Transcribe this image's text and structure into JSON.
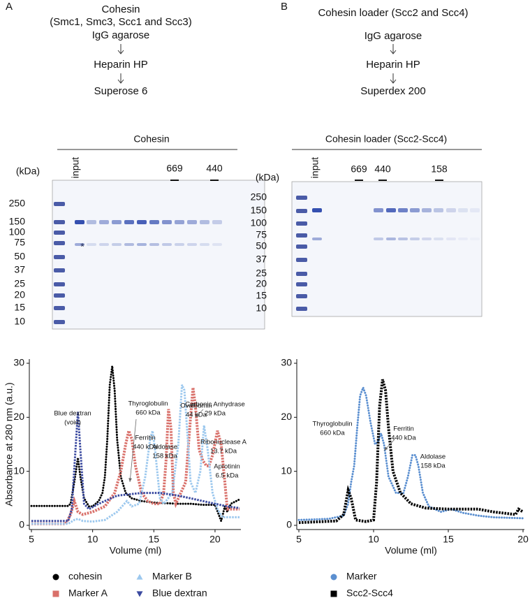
{
  "panels": [
    {
      "label": "A",
      "title": "Cohesin",
      "subtitle": "(Smc1, Smc3, Scc1 and Scc3)",
      "steps": [
        "IgG agarose",
        "Heparin HP",
        "Superose 6"
      ],
      "gel": {
        "title": "Cohesin",
        "unit": "(kDa)",
        "lane_label": "input",
        "ladder": [
          250,
          150,
          100,
          75,
          50,
          37,
          25,
          20,
          15,
          10
        ],
        "markers": [
          669,
          440
        ],
        "asterisk": "*"
      }
    },
    {
      "label": "B",
      "title": "Cohesin loader (Scc2 and Scc4)",
      "steps": [
        "IgG agarose",
        "Heparin HP",
        "Superdex 200"
      ],
      "gel": {
        "title": "Cohesin loader (Scc2-Scc4)",
        "unit": "(kDa)",
        "lane_label": "input",
        "ladder": [
          250,
          150,
          100,
          75,
          50,
          37,
          25,
          20,
          15,
          10
        ],
        "markers": [
          669,
          440,
          158
        ]
      }
    }
  ],
  "chart_data": [
    {
      "type": "scatter",
      "xlabel": "Volume (ml)",
      "ylabel": "Absorbance at 280 nm (a.u.)",
      "xlim": [
        5,
        22
      ],
      "xticks": [
        5,
        10,
        15,
        20
      ],
      "ylim": [
        0,
        30
      ],
      "yticks": [
        0,
        10,
        20,
        30
      ],
      "series": [
        {
          "name": "cohesin",
          "color": "#000000",
          "marker": "circle",
          "x": [
            5,
            6,
            7,
            8,
            8.2,
            8.5,
            8.8,
            9.0,
            9.3,
            9.7,
            10,
            10.5,
            10.8,
            11,
            11.2,
            11.4,
            11.6,
            11.8,
            12,
            12.3,
            12.7,
            13.2,
            14,
            15,
            16,
            17,
            18,
            19,
            20,
            20.3,
            20.5,
            20.8,
            21,
            21.3,
            22
          ],
          "values": [
            3.6,
            3.6,
            3.6,
            3.6,
            4,
            8,
            12.5,
            9,
            5,
            3.5,
            3.5,
            4.5,
            6,
            9,
            16,
            26,
            29.5,
            25,
            16,
            9,
            6,
            5,
            4.5,
            4.2,
            4.1,
            4,
            4,
            3.8,
            3.8,
            2,
            0.8,
            3.5,
            2.5,
            4,
            4.8
          ]
        },
        {
          "name": "Marker A",
          "color": "#d9706a",
          "marker": "square",
          "x": [
            5,
            7.8,
            8.2,
            8.5,
            8.8,
            9.2,
            10,
            11,
            11.8,
            12.3,
            12.7,
            12.95,
            13.2,
            13.5,
            14,
            14.5,
            15,
            15.5,
            15.8,
            16,
            16.2,
            16.4,
            16.6,
            16.8,
            17.2,
            17.6,
            18,
            18.2,
            18.4,
            18.7,
            19,
            19.3,
            19.5,
            19.8,
            20.2,
            20.5,
            20.8,
            21,
            21.5,
            22
          ],
          "values": [
            0.3,
            0.3,
            2,
            4.5,
            2.5,
            2,
            2.5,
            3.5,
            6,
            10,
            15,
            17.5,
            16,
            11,
            6,
            4.5,
            4,
            4,
            6,
            12,
            21.5,
            18,
            6,
            4,
            6,
            8,
            20,
            25.5,
            22,
            14,
            12,
            11,
            11,
            13,
            17.5,
            15,
            8,
            3,
            3,
            3
          ]
        },
        {
          "name": "Marker B",
          "color": "#9cc8ee",
          "marker": "triangle",
          "x": [
            5,
            8,
            8.5,
            8.8,
            9.2,
            10,
            11,
            12,
            12.8,
            13.2,
            13.8,
            14.3,
            14.7,
            14.9,
            15.1,
            15.5,
            15.8,
            16,
            16.5,
            17,
            17.3,
            17.5,
            17.8,
            18,
            18.4,
            18.8,
            19.1,
            19.4,
            19.8,
            20.2,
            20.6,
            21,
            22
          ],
          "values": [
            0.3,
            0.3,
            1,
            1.2,
            0.8,
            0.7,
            1,
            2.5,
            4.5,
            3.5,
            4,
            9,
            16,
            17.5,
            14,
            5,
            4,
            4.5,
            6,
            15,
            26,
            25,
            15,
            8,
            6,
            10,
            18.5,
            14,
            6,
            3,
            1.5,
            1.5,
            1.5
          ]
        },
        {
          "name": "Blue dextran",
          "color": "#3b4aa0",
          "marker": "triangle-down",
          "x": [
            5,
            8,
            8.3,
            8.6,
            8.8,
            9.0,
            9.3,
            9.7,
            10.5,
            12,
            14,
            15.5,
            17,
            18,
            19,
            20,
            21,
            22
          ],
          "values": [
            0.8,
            0.8,
            3,
            14,
            21,
            14,
            4,
            3,
            4,
            5.5,
            6,
            6,
            5.5,
            5,
            4.5,
            4,
            3.5,
            3.2
          ]
        }
      ],
      "annotations": [
        [
          "Blue dextran",
          "(void)"
        ],
        [
          "Thyroglobulin",
          "660 kDa"
        ],
        [
          "Ferritin",
          "440 kDa"
        ],
        [
          "Aldolase",
          "158 kDa"
        ],
        [
          "Ovalbumin",
          "44 kDa"
        ],
        [
          "Carbonic Anhydrase",
          "29 kDa"
        ],
        [
          "Ribonuclease A",
          "13.7 kDa"
        ],
        [
          "Aprotinin",
          "6.5 kDa"
        ]
      ]
    },
    {
      "type": "scatter",
      "xlabel": "Volume (ml)",
      "xlim": [
        5,
        20
      ],
      "xticks": [
        5,
        10,
        15,
        20
      ],
      "ylim": [
        0,
        30
      ],
      "yticks": [
        0,
        10,
        20,
        30
      ],
      "series": [
        {
          "name": "Marker",
          "color": "#5b8fd0",
          "marker": "circle",
          "x": [
            5,
            7,
            8,
            8.3,
            8.5,
            8.7,
            8.9,
            9.1,
            9.3,
            9.5,
            9.8,
            10.1,
            10.3,
            10.5,
            10.7,
            11,
            11.5,
            12,
            12.3,
            12.6,
            12.8,
            13,
            13.3,
            13.7,
            14.5,
            15.2,
            16,
            17,
            18,
            20
          ],
          "values": [
            1,
            1.2,
            1.8,
            4,
            8,
            11,
            18,
            24,
            25.5,
            24,
            19,
            15,
            15.5,
            17,
            15,
            9,
            6,
            6,
            9,
            13,
            13,
            11,
            6,
            3.5,
            2.5,
            3,
            2.3,
            1.8,
            1.5,
            1.3
          ]
        },
        {
          "name": "Scc2-Scc4",
          "color": "#000000",
          "marker": "square",
          "x": [
            5,
            7.5,
            8,
            8.3,
            8.5,
            8.8,
            9.5,
            10,
            10.2,
            10.4,
            10.6,
            10.8,
            11,
            11.3,
            11.8,
            12.5,
            13.5,
            15,
            16.5,
            17,
            18,
            19.5,
            19.7,
            20
          ],
          "values": [
            0.5,
            0.8,
            2,
            6.5,
            5,
            1,
            0.7,
            1,
            8,
            22,
            27,
            25,
            18,
            10,
            6,
            4,
            3.2,
            3,
            3,
            3,
            2.5,
            2,
            3,
            2.5
          ]
        }
      ],
      "annotations": [
        [
          "Thyroglobulin",
          "660 kDa"
        ],
        [
          "Ferritin",
          "440 kDa"
        ],
        [
          "Aldolase",
          "158 kDa"
        ]
      ]
    }
  ]
}
